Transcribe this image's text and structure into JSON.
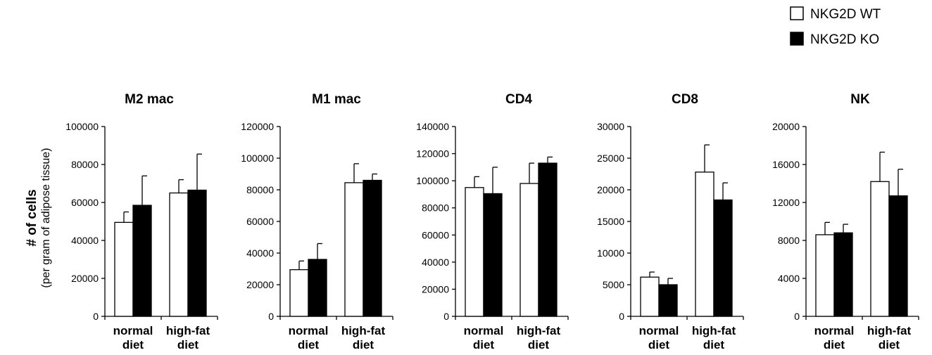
{
  "figure": {
    "ylabel_main": "# of cells",
    "ylabel_sub": "(per gram of adipose tissue)"
  },
  "legend": {
    "items": [
      {
        "label": "NKG2D WT",
        "color": "#ffffff"
      },
      {
        "label": "NKG2D KO",
        "color": "#000000"
      }
    ]
  },
  "chart_data": [
    {
      "type": "bar",
      "title": "M2 mac",
      "categories": [
        [
          "normal",
          "diet"
        ],
        [
          "high-fat",
          "diet"
        ]
      ],
      "ylim": [
        0,
        100000
      ],
      "yticks": [
        0,
        20000,
        40000,
        60000,
        80000,
        100000
      ],
      "series": [
        {
          "name": "NKG2D WT",
          "values": [
            49500,
            65000
          ],
          "errors": [
            5500,
            7000
          ]
        },
        {
          "name": "NKG2D KO",
          "values": [
            58500,
            66500
          ],
          "errors": [
            15500,
            19000
          ]
        }
      ]
    },
    {
      "type": "bar",
      "title": "M1 mac",
      "categories": [
        [
          "normal",
          "diet"
        ],
        [
          "high-fat",
          "diet"
        ]
      ],
      "ylim": [
        0,
        120000
      ],
      "yticks": [
        0,
        20000,
        40000,
        60000,
        80000,
        100000,
        120000
      ],
      "series": [
        {
          "name": "NKG2D WT",
          "values": [
            29500,
            84500
          ],
          "errors": [
            5500,
            12000
          ]
        },
        {
          "name": "NKG2D KO",
          "values": [
            36000,
            86000
          ],
          "errors": [
            10000,
            4000
          ]
        }
      ]
    },
    {
      "type": "bar",
      "title": "CD4",
      "categories": [
        [
          "normal",
          "diet"
        ],
        [
          "high-fat",
          "diet"
        ]
      ],
      "ylim": [
        0,
        140000
      ],
      "yticks": [
        0,
        20000,
        40000,
        60000,
        80000,
        100000,
        120000,
        140000
      ],
      "series": [
        {
          "name": "NKG2D WT",
          "values": [
            95000,
            98000
          ],
          "errors": [
            8000,
            15000
          ]
        },
        {
          "name": "NKG2D KO",
          "values": [
            90500,
            113000
          ],
          "errors": [
            19500,
            4500
          ]
        }
      ]
    },
    {
      "type": "bar",
      "title": "CD8",
      "categories": [
        [
          "normal",
          "diet"
        ],
        [
          "high-fat",
          "diet"
        ]
      ],
      "ylim": [
        0,
        30000
      ],
      "yticks": [
        0,
        5000,
        10000,
        15000,
        20000,
        25000,
        30000
      ],
      "series": [
        {
          "name": "NKG2D WT",
          "values": [
            6200,
            22800
          ],
          "errors": [
            800,
            4300
          ]
        },
        {
          "name": "NKG2D KO",
          "values": [
            5000,
            18400
          ],
          "errors": [
            1000,
            2700
          ]
        }
      ]
    },
    {
      "type": "bar",
      "title": "NK",
      "categories": [
        [
          "normal",
          "diet"
        ],
        [
          "high-fat",
          "diet"
        ]
      ],
      "ylim": [
        0,
        20000
      ],
      "yticks": [
        0,
        4000,
        8000,
        12000,
        16000,
        20000
      ],
      "series": [
        {
          "name": "NKG2D WT",
          "values": [
            8600,
            14200
          ],
          "errors": [
            1300,
            3100
          ]
        },
        {
          "name": "NKG2D KO",
          "values": [
            8800,
            12700
          ],
          "errors": [
            900,
            2800
          ]
        }
      ]
    }
  ]
}
